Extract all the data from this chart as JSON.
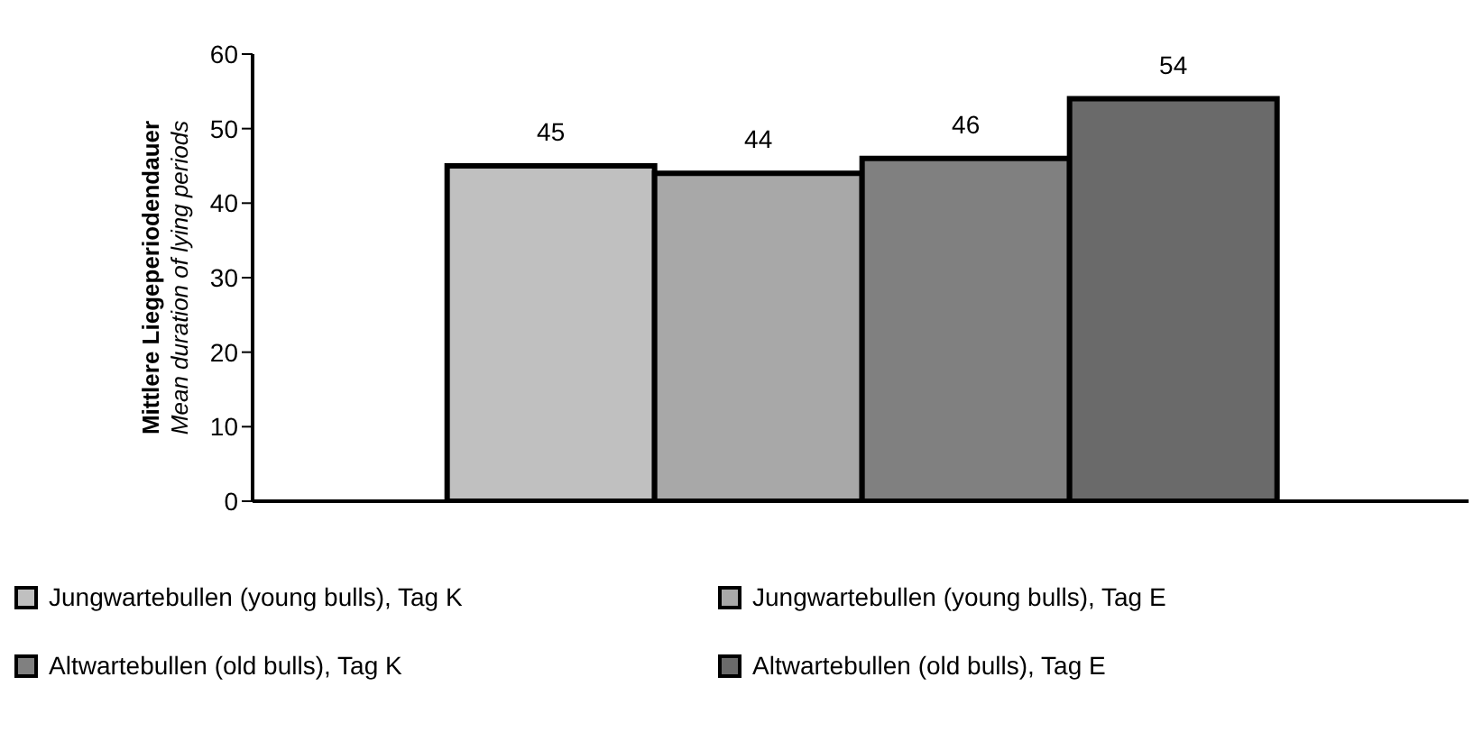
{
  "chart_data": {
    "type": "bar",
    "ylabel": "Mittlere Liegeperiodendauer\nMean duration of lying periods",
    "categories": [
      null
    ],
    "series": [
      {
        "name": "Jungwartebullen (young bulls), Tag K",
        "color": "#c0c0c0",
        "values": [
          45
        ]
      },
      {
        "name": "Jungwartebullen (young bulls), Tag E",
        "color": "#a8a8a8",
        "values": [
          44
        ]
      },
      {
        "name": "Altwartebullen (old bulls), Tag K",
        "color": "#808080",
        "values": [
          46
        ]
      },
      {
        "name": "Altwartebullen (old bulls), Tag E",
        "color": "#6a6a6a",
        "values": [
          54
        ]
      }
    ],
    "ylim": [
      0,
      60
    ],
    "yticks": [
      0,
      10,
      20,
      30,
      40,
      50,
      60
    ],
    "data_labels": true,
    "grid": false,
    "legend": "bottom"
  }
}
